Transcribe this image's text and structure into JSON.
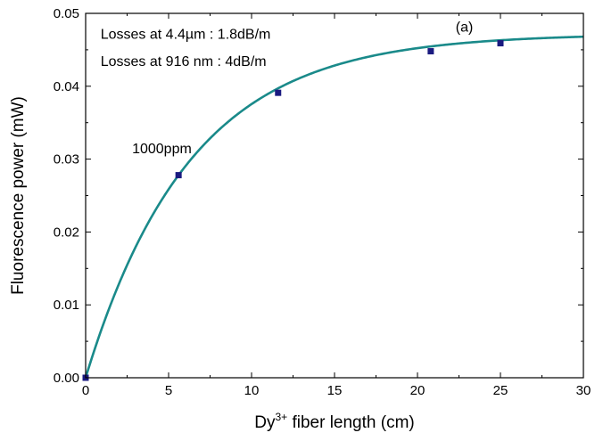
{
  "chart_data": {
    "type": "scatter",
    "title": "",
    "xlabel": {
      "base": "Dy",
      "sup": "3+",
      "rest": " fiber length (cm)"
    },
    "ylabel": "Fluorescence power (mW)",
    "xlim": [
      0,
      30
    ],
    "ylim": [
      0,
      0.05
    ],
    "x_ticks": [
      0,
      5,
      10,
      15,
      20,
      25,
      30
    ],
    "x_tick_labels": [
      "0",
      "5",
      "10",
      "15",
      "20",
      "25",
      "30"
    ],
    "y_ticks": [
      0,
      0.01,
      0.02,
      0.03,
      0.04,
      0.05
    ],
    "y_tick_labels": [
      "0.00",
      "0.01",
      "0.02",
      "0.03",
      "0.04",
      "0.05"
    ],
    "grid": false,
    "series": [
      {
        "kind": "scatter",
        "color": "#1a1a80",
        "x": [
          0,
          5.6,
          11.6,
          20.8,
          25.0
        ],
        "y": [
          0.0,
          0.0278,
          0.0391,
          0.0448,
          0.0459
        ]
      },
      {
        "kind": "line",
        "color": "#1a8a8a",
        "model": "y = A*(1-exp(-x/L))",
        "A": 0.0472,
        "L": 6.3
      }
    ],
    "annotations": [
      {
        "text": "Losses at 4.4µm : 1.8dB/m",
        "x": 0.9,
        "y": 0.0465
      },
      {
        "text": "Losses at 916 nm : 4dB/m",
        "x": 0.9,
        "y": 0.0428
      },
      {
        "text": "1000ppm",
        "x": 2.8,
        "y": 0.0308
      },
      {
        "text": "(a)",
        "x": 22.3,
        "y": 0.0475
      }
    ]
  }
}
